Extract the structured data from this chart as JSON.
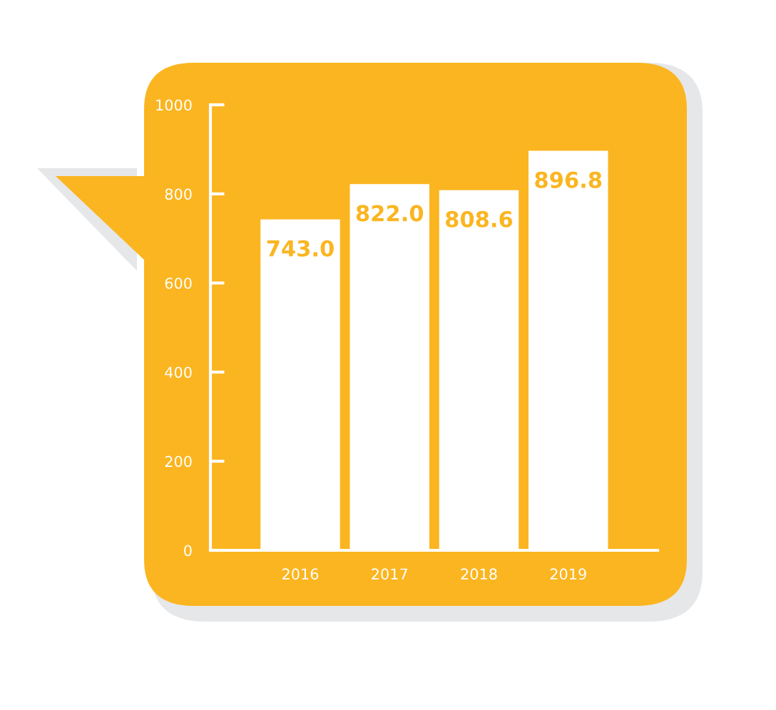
{
  "chart_data": {
    "type": "bar",
    "categories": [
      "2016",
      "2017",
      "2018",
      "2019"
    ],
    "values": [
      743.0,
      822.0,
      808.6,
      896.8
    ],
    "color": "#ffffff",
    "ylim": [
      0,
      1000
    ],
    "yticks": [
      0,
      200,
      400,
      600,
      800,
      1000
    ],
    "value_labels": [
      "743.0",
      "822.0",
      "808.6",
      "896.8"
    ],
    "grid": false,
    "legend": false
  }
}
